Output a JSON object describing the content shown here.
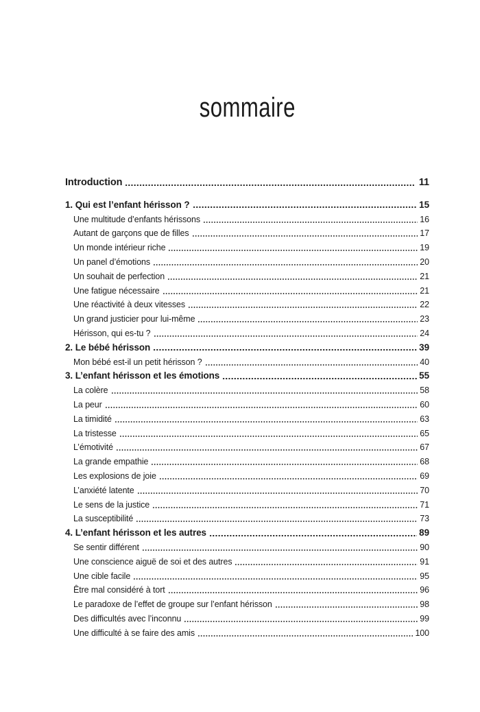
{
  "document": {
    "title": "sommaire"
  },
  "toc": {
    "entries": [
      {
        "label": "Introduction",
        "page": "11",
        "level": "intro"
      },
      {
        "label": "1. Qui est l’enfant hérisson ?",
        "page": "15",
        "level": "section"
      },
      {
        "label": "Une multitude d’enfants hérissons",
        "page": "16",
        "level": "sub"
      },
      {
        "label": "Autant de garçons que de filles",
        "page": "17",
        "level": "sub"
      },
      {
        "label": "Un monde intérieur riche",
        "page": "19",
        "level": "sub"
      },
      {
        "label": "Un panel d’émotions",
        "page": "20",
        "level": "sub"
      },
      {
        "label": "Un souhait de perfection",
        "page": "21",
        "level": "sub"
      },
      {
        "label": "Une fatigue nécessaire",
        "page": "21",
        "level": "sub"
      },
      {
        "label": "Une réactivité à deux vitesses",
        "page": "22",
        "level": "sub"
      },
      {
        "label": "Un grand justicier pour lui-même",
        "page": "23",
        "level": "sub"
      },
      {
        "label": "Hérisson, qui es-tu ?",
        "page": "24",
        "level": "sub"
      },
      {
        "label": "2. Le bébé hérisson",
        "page": "39",
        "level": "section"
      },
      {
        "label": "Mon bébé est-il un petit hérisson ?",
        "page": "40",
        "level": "sub"
      },
      {
        "label": "3. L’enfant hérisson et les émotions",
        "page": "55",
        "level": "section"
      },
      {
        "label": "La colère",
        "page": "58",
        "level": "sub"
      },
      {
        "label": "La peur",
        "page": "60",
        "level": "sub"
      },
      {
        "label": "La timidité",
        "page": "63",
        "level": "sub"
      },
      {
        "label": "La tristesse",
        "page": "65",
        "level": "sub"
      },
      {
        "label": "L’émotivité",
        "page": "67",
        "level": "sub"
      },
      {
        "label": "La grande empathie",
        "page": "68",
        "level": "sub"
      },
      {
        "label": "Les explosions de joie",
        "page": "69",
        "level": "sub"
      },
      {
        "label": "L’anxiété latente",
        "page": "70",
        "level": "sub"
      },
      {
        "label": "Le sens de la justice",
        "page": "71",
        "level": "sub"
      },
      {
        "label": "La susceptibilité",
        "page": "73",
        "level": "sub"
      },
      {
        "label": "4. L’enfant hérisson et les autres",
        "page": "89",
        "level": "section"
      },
      {
        "label": "Se sentir différent",
        "page": "90",
        "level": "sub"
      },
      {
        "label": "Une conscience aiguë de soi et des autres",
        "page": "91",
        "level": "sub"
      },
      {
        "label": "Une cible facile",
        "page": "95",
        "level": "sub"
      },
      {
        "label": "Être mal considéré à tort",
        "page": "96",
        "level": "sub"
      },
      {
        "label": "Le paradoxe de l’effet de groupe sur l’enfant hérisson",
        "page": "98",
        "level": "sub"
      },
      {
        "label": "Des difficultés avec l’inconnu",
        "page": "99",
        "level": "sub"
      },
      {
        "label": "Une difficulté à se faire des amis",
        "page": "100",
        "level": "sub"
      }
    ]
  }
}
